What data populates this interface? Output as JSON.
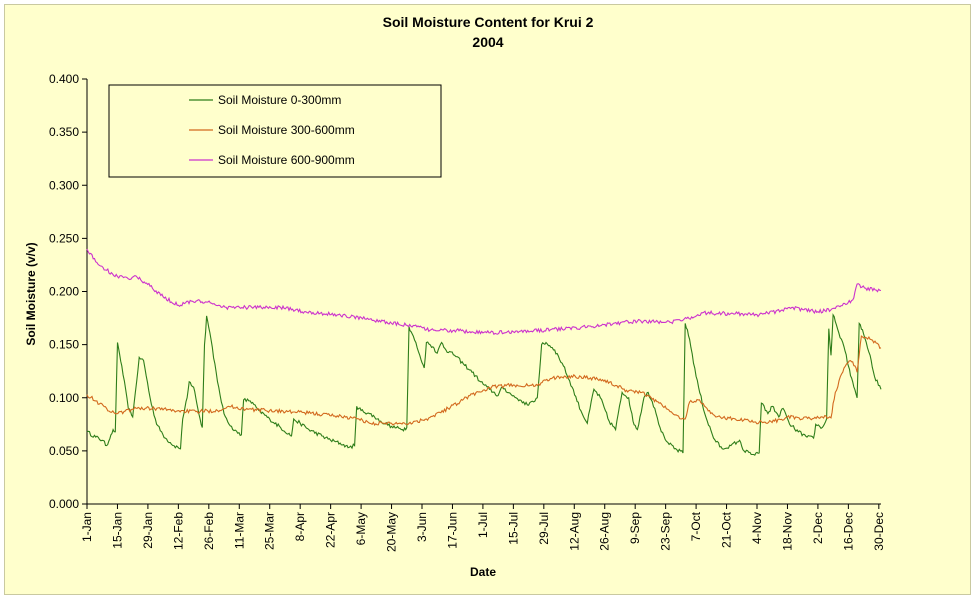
{
  "chart_data": {
    "type": "line",
    "title": "Soil Moisture Content for Krui 2",
    "subtitle": "2004",
    "xlabel": "Date",
    "ylabel": "Soil Moisture (v/v)",
    "ylim": [
      0,
      0.4
    ],
    "yticks": [
      "0.000",
      "0.050",
      "0.100",
      "0.150",
      "0.200",
      "0.250",
      "0.300",
      "0.350",
      "0.400"
    ],
    "xlim": [
      "2004-01-01",
      "2004-12-31"
    ],
    "xticks": [
      {
        "label": "1-Jan",
        "date": "2004-01-01"
      },
      {
        "label": "15-Jan",
        "date": "2004-01-15"
      },
      {
        "label": "29-Jan",
        "date": "2004-01-29"
      },
      {
        "label": "12-Feb",
        "date": "2004-02-12"
      },
      {
        "label": "26-Feb",
        "date": "2004-02-26"
      },
      {
        "label": "11-Mar",
        "date": "2004-03-11"
      },
      {
        "label": "25-Mar",
        "date": "2004-03-25"
      },
      {
        "label": "8-Apr",
        "date": "2004-04-08"
      },
      {
        "label": "22-Apr",
        "date": "2004-04-22"
      },
      {
        "label": "6-May",
        "date": "2004-05-06"
      },
      {
        "label": "20-May",
        "date": "2004-05-20"
      },
      {
        "label": "3-Jun",
        "date": "2004-06-03"
      },
      {
        "label": "17-Jun",
        "date": "2004-06-17"
      },
      {
        "label": "1-Jul",
        "date": "2004-07-01"
      },
      {
        "label": "15-Jul",
        "date": "2004-07-15"
      },
      {
        "label": "29-Jul",
        "date": "2004-07-29"
      },
      {
        "label": "12-Aug",
        "date": "2004-08-12"
      },
      {
        "label": "26-Aug",
        "date": "2004-08-26"
      },
      {
        "label": "9-Sep",
        "date": "2004-09-09"
      },
      {
        "label": "23-Sep",
        "date": "2004-09-23"
      },
      {
        "label": "7-Oct",
        "date": "2004-10-07"
      },
      {
        "label": "21-Oct",
        "date": "2004-10-21"
      },
      {
        "label": "4-Nov",
        "date": "2004-11-04"
      },
      {
        "label": "18-Nov",
        "date": "2004-11-18"
      },
      {
        "label": "2-Dec",
        "date": "2004-12-02"
      },
      {
        "label": "16-Dec",
        "date": "2004-12-16"
      },
      {
        "label": "30-Dec",
        "date": "2004-12-30"
      }
    ],
    "grid": false,
    "legend_position": "top-left",
    "series": [
      {
        "name": "Soil Moisture 0-300mm",
        "color": "#2e7d1a",
        "points": [
          [
            "2004-01-01",
            0.068
          ],
          [
            "2004-01-05",
            0.063
          ],
          [
            "2004-01-08",
            0.06
          ],
          [
            "2004-01-10",
            0.055
          ],
          [
            "2004-01-12",
            0.065
          ],
          [
            "2004-01-13",
            0.07
          ],
          [
            "2004-01-14",
            0.068
          ],
          [
            "2004-01-15",
            0.152
          ],
          [
            "2004-01-17",
            0.13
          ],
          [
            "2004-01-20",
            0.09
          ],
          [
            "2004-01-22",
            0.082
          ],
          [
            "2004-01-25",
            0.138
          ],
          [
            "2004-01-27",
            0.135
          ],
          [
            "2004-01-30",
            0.1
          ],
          [
            "2004-02-02",
            0.075
          ],
          [
            "2004-02-06",
            0.062
          ],
          [
            "2004-02-10",
            0.055
          ],
          [
            "2004-02-13",
            0.052
          ],
          [
            "2004-02-14",
            0.08
          ],
          [
            "2004-02-16",
            0.1
          ],
          [
            "2004-02-17",
            0.115
          ],
          [
            "2004-02-19",
            0.11
          ],
          [
            "2004-02-20",
            0.1
          ],
          [
            "2004-02-22",
            0.08
          ],
          [
            "2004-02-23",
            0.072
          ],
          [
            "2004-02-24",
            0.15
          ],
          [
            "2004-02-25",
            0.177
          ],
          [
            "2004-02-27",
            0.155
          ],
          [
            "2004-03-01",
            0.115
          ],
          [
            "2004-03-04",
            0.085
          ],
          [
            "2004-03-08",
            0.07
          ],
          [
            "2004-03-12",
            0.065
          ],
          [
            "2004-03-13",
            0.098
          ],
          [
            "2004-03-16",
            0.097
          ],
          [
            "2004-03-20",
            0.088
          ],
          [
            "2004-03-25",
            0.08
          ],
          [
            "2004-03-30",
            0.072
          ],
          [
            "2004-04-04",
            0.064
          ],
          [
            "2004-04-05",
            0.08
          ],
          [
            "2004-04-08",
            0.076
          ],
          [
            "2004-04-12",
            0.07
          ],
          [
            "2004-04-18",
            0.064
          ],
          [
            "2004-04-22",
            0.06
          ],
          [
            "2004-04-28",
            0.056
          ],
          [
            "2004-04-30",
            0.053
          ],
          [
            "2004-05-03",
            0.055
          ],
          [
            "2004-05-04",
            0.092
          ],
          [
            "2004-05-06",
            0.088
          ],
          [
            "2004-05-10",
            0.085
          ],
          [
            "2004-05-15",
            0.078
          ],
          [
            "2004-05-20",
            0.073
          ],
          [
            "2004-05-25",
            0.07
          ],
          [
            "2004-05-27",
            0.072
          ],
          [
            "2004-05-28",
            0.167
          ],
          [
            "2004-05-30",
            0.158
          ],
          [
            "2004-06-02",
            0.14
          ],
          [
            "2004-06-04",
            0.128
          ],
          [
            "2004-06-05",
            0.152
          ],
          [
            "2004-06-08",
            0.148
          ],
          [
            "2004-06-10",
            0.142
          ],
          [
            "2004-06-12",
            0.152
          ],
          [
            "2004-06-14",
            0.145
          ],
          [
            "2004-06-18",
            0.14
          ],
          [
            "2004-06-22",
            0.132
          ],
          [
            "2004-06-26",
            0.124
          ],
          [
            "2004-06-30",
            0.115
          ],
          [
            "2004-07-04",
            0.108
          ],
          [
            "2004-07-08",
            0.102
          ],
          [
            "2004-07-10",
            0.11
          ],
          [
            "2004-07-14",
            0.103
          ],
          [
            "2004-07-18",
            0.098
          ],
          [
            "2004-07-22",
            0.093
          ],
          [
            "2004-07-26",
            0.1
          ],
          [
            "2004-07-28",
            0.15
          ],
          [
            "2004-07-30",
            0.152
          ],
          [
            "2004-08-03",
            0.145
          ],
          [
            "2004-08-07",
            0.13
          ],
          [
            "2004-08-11",
            0.11
          ],
          [
            "2004-08-15",
            0.088
          ],
          [
            "2004-08-18",
            0.076
          ],
          [
            "2004-08-21",
            0.108
          ],
          [
            "2004-08-24",
            0.1
          ],
          [
            "2004-08-28",
            0.078
          ],
          [
            "2004-08-31",
            0.07
          ],
          [
            "2004-09-03",
            0.105
          ],
          [
            "2004-09-06",
            0.1
          ],
          [
            "2004-09-08",
            0.078
          ],
          [
            "2004-09-10",
            0.07
          ],
          [
            "2004-09-13",
            0.1
          ],
          [
            "2004-09-15",
            0.105
          ],
          [
            "2004-09-18",
            0.09
          ],
          [
            "2004-09-21",
            0.068
          ],
          [
            "2004-09-24",
            0.058
          ],
          [
            "2004-09-27",
            0.052
          ],
          [
            "2004-10-01",
            0.048
          ],
          [
            "2004-10-02",
            0.17
          ],
          [
            "2004-10-04",
            0.155
          ],
          [
            "2004-10-07",
            0.12
          ],
          [
            "2004-10-11",
            0.085
          ],
          [
            "2004-10-15",
            0.062
          ],
          [
            "2004-10-19",
            0.052
          ],
          [
            "2004-10-23",
            0.055
          ],
          [
            "2004-10-27",
            0.06
          ],
          [
            "2004-10-29",
            0.05
          ],
          [
            "2004-11-03",
            0.046
          ],
          [
            "2004-11-05",
            0.048
          ],
          [
            "2004-11-06",
            0.095
          ],
          [
            "2004-11-09",
            0.085
          ],
          [
            "2004-11-11",
            0.092
          ],
          [
            "2004-11-14",
            0.082
          ],
          [
            "2004-11-16",
            0.09
          ],
          [
            "2004-11-19",
            0.075
          ],
          [
            "2004-11-23",
            0.068
          ],
          [
            "2004-11-27",
            0.063
          ],
          [
            "2004-11-30",
            0.062
          ],
          [
            "2004-12-01",
            0.075
          ],
          [
            "2004-12-04",
            0.072
          ],
          [
            "2004-12-06",
            0.08
          ],
          [
            "2004-12-07",
            0.165
          ],
          [
            "2004-12-08",
            0.14
          ],
          [
            "2004-12-09",
            0.178
          ],
          [
            "2004-12-11",
            0.165
          ],
          [
            "2004-12-14",
            0.148
          ],
          [
            "2004-12-16",
            0.13
          ],
          [
            "2004-12-18",
            0.115
          ],
          [
            "2004-12-20",
            0.1
          ],
          [
            "2004-12-21",
            0.17
          ],
          [
            "2004-12-23",
            0.16
          ],
          [
            "2004-12-26",
            0.14
          ],
          [
            "2004-12-28",
            0.12
          ],
          [
            "2004-12-31",
            0.108
          ]
        ]
      },
      {
        "name": "Soil Moisture 300-600mm",
        "color": "#d2691e",
        "points": [
          [
            "2004-01-01",
            0.103
          ],
          [
            "2004-01-05",
            0.097
          ],
          [
            "2004-01-10",
            0.09
          ],
          [
            "2004-01-14",
            0.085
          ],
          [
            "2004-01-18",
            0.087
          ],
          [
            "2004-01-24",
            0.09
          ],
          [
            "2004-02-01",
            0.09
          ],
          [
            "2004-02-10",
            0.088
          ],
          [
            "2004-02-20",
            0.087
          ],
          [
            "2004-03-01",
            0.088
          ],
          [
            "2004-03-06",
            0.092
          ],
          [
            "2004-03-15",
            0.089
          ],
          [
            "2004-03-25",
            0.088
          ],
          [
            "2004-04-10",
            0.086
          ],
          [
            "2004-04-25",
            0.083
          ],
          [
            "2004-05-05",
            0.08
          ],
          [
            "2004-05-10",
            0.076
          ],
          [
            "2004-05-20",
            0.076
          ],
          [
            "2004-05-28",
            0.076
          ],
          [
            "2004-06-05",
            0.08
          ],
          [
            "2004-06-15",
            0.09
          ],
          [
            "2004-06-25",
            0.102
          ],
          [
            "2004-07-05",
            0.11
          ],
          [
            "2004-07-15",
            0.112
          ],
          [
            "2004-07-25",
            0.111
          ],
          [
            "2004-08-01",
            0.118
          ],
          [
            "2004-08-08",
            0.12
          ],
          [
            "2004-08-15",
            0.12
          ],
          [
            "2004-08-25",
            0.117
          ],
          [
            "2004-09-05",
            0.107
          ],
          [
            "2004-09-12",
            0.105
          ],
          [
            "2004-09-20",
            0.095
          ],
          [
            "2004-09-30",
            0.08
          ],
          [
            "2004-10-02",
            0.08
          ],
          [
            "2004-10-04",
            0.096
          ],
          [
            "2004-10-08",
            0.098
          ],
          [
            "2004-10-12",
            0.09
          ],
          [
            "2004-10-16",
            0.082
          ],
          [
            "2004-10-25",
            0.08
          ],
          [
            "2004-11-05",
            0.077
          ],
          [
            "2004-11-12",
            0.078
          ],
          [
            "2004-11-18",
            0.082
          ],
          [
            "2004-11-25",
            0.08
          ],
          [
            "2004-12-04",
            0.082
          ],
          [
            "2004-12-08",
            0.081
          ],
          [
            "2004-12-10",
            0.105
          ],
          [
            "2004-12-14",
            0.128
          ],
          [
            "2004-12-17",
            0.135
          ],
          [
            "2004-12-19",
            0.13
          ],
          [
            "2004-12-20",
            0.124
          ],
          [
            "2004-12-22",
            0.158
          ],
          [
            "2004-12-26",
            0.155
          ],
          [
            "2004-12-31",
            0.147
          ]
        ]
      },
      {
        "name": "Soil Moisture 600-900mm",
        "color": "#cc33cc",
        "points": [
          [
            "2004-01-01",
            0.24
          ],
          [
            "2004-01-05",
            0.228
          ],
          [
            "2004-01-10",
            0.22
          ],
          [
            "2004-01-15",
            0.214
          ],
          [
            "2004-01-20",
            0.212
          ],
          [
            "2004-01-23",
            0.215
          ],
          [
            "2004-01-30",
            0.205
          ],
          [
            "2004-02-05",
            0.195
          ],
          [
            "2004-02-12",
            0.187
          ],
          [
            "2004-02-18",
            0.191
          ],
          [
            "2004-02-25",
            0.19
          ],
          [
            "2004-03-05",
            0.185
          ],
          [
            "2004-03-20",
            0.185
          ],
          [
            "2004-03-30",
            0.185
          ],
          [
            "2004-04-10",
            0.181
          ],
          [
            "2004-04-25",
            0.178
          ],
          [
            "2004-05-10",
            0.174
          ],
          [
            "2004-05-20",
            0.17
          ],
          [
            "2004-05-30",
            0.168
          ],
          [
            "2004-06-05",
            0.164
          ],
          [
            "2004-06-20",
            0.163
          ],
          [
            "2004-07-01",
            0.161
          ],
          [
            "2004-07-15",
            0.162
          ],
          [
            "2004-08-01",
            0.164
          ],
          [
            "2004-08-15",
            0.166
          ],
          [
            "2004-08-30",
            0.17
          ],
          [
            "2004-09-10",
            0.172
          ],
          [
            "2004-09-25",
            0.171
          ],
          [
            "2004-10-01",
            0.173
          ],
          [
            "2004-10-10",
            0.18
          ],
          [
            "2004-10-25",
            0.179
          ],
          [
            "2004-11-05",
            0.178
          ],
          [
            "2004-11-15",
            0.182
          ],
          [
            "2004-11-20",
            0.185
          ],
          [
            "2004-11-25",
            0.183
          ],
          [
            "2004-12-02",
            0.181
          ],
          [
            "2004-12-10",
            0.184
          ],
          [
            "2004-12-18",
            0.192
          ],
          [
            "2004-12-20",
            0.207
          ],
          [
            "2004-12-24",
            0.203
          ],
          [
            "2004-12-31",
            0.201
          ]
        ]
      }
    ]
  }
}
